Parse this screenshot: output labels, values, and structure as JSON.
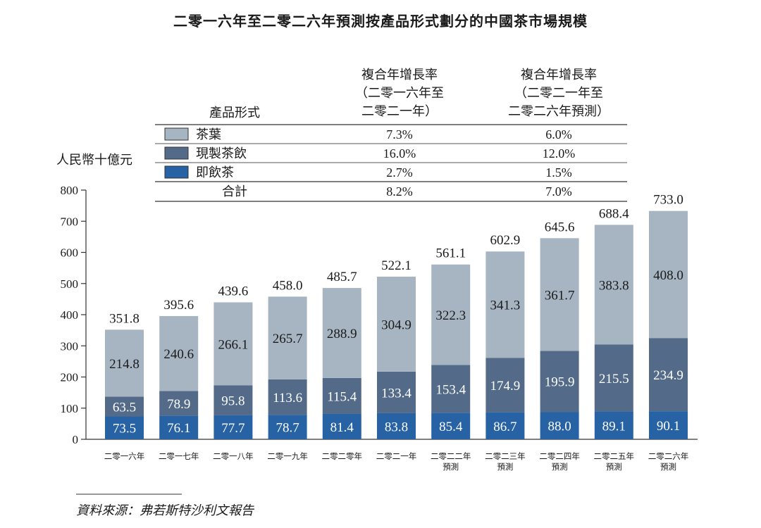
{
  "chart_data": {
    "type": "bar",
    "stacked": true,
    "title": "二零一六年至二零二六年預測按產品形式劃分的中國茶市場規模",
    "ylabel": "人民幣十億元",
    "ylim": [
      0,
      800
    ],
    "yticks": [
      0,
      100,
      200,
      300,
      400,
      500,
      600,
      700,
      800
    ],
    "grid": false,
    "categories": [
      [
        "二零一六年"
      ],
      [
        "二零一七年"
      ],
      [
        "二零一八年"
      ],
      [
        "二零一九年"
      ],
      [
        "二零二零年"
      ],
      [
        "二零二一年"
      ],
      [
        "二零二二年",
        "預測"
      ],
      [
        "二零二三年",
        "預測"
      ],
      [
        "二零二四年",
        "預測"
      ],
      [
        "二零二五年",
        "預測"
      ],
      [
        "二零二六年",
        "預測"
      ]
    ],
    "series": [
      {
        "name": "即飲茶",
        "color": "#2762a4",
        "values": [
          73.5,
          76.1,
          77.7,
          78.7,
          81.4,
          83.8,
          85.4,
          86.7,
          88.0,
          89.1,
          90.1
        ]
      },
      {
        "name": "現製茶飲",
        "color": "#536b88",
        "values": [
          63.5,
          78.9,
          95.8,
          113.6,
          115.4,
          133.4,
          153.4,
          174.9,
          195.9,
          215.5,
          234.9
        ]
      },
      {
        "name": "茶葉",
        "color": "#a7b5c3",
        "values": [
          214.8,
          240.6,
          266.1,
          265.7,
          288.9,
          304.9,
          322.3,
          341.3,
          361.7,
          383.8,
          408.0
        ]
      }
    ],
    "totals": [
      351.8,
      395.6,
      439.6,
      458.0,
      485.7,
      522.1,
      561.1,
      602.9,
      645.6,
      688.4,
      733.0
    ],
    "legend_table": {
      "header": [
        "產品形式",
        [
          "複合年增長率",
          "（二零一六年至",
          "二零二一年）"
        ],
        [
          "複合年增長率",
          "（二零二一年至",
          "二零二六年預測）"
        ]
      ],
      "rows": [
        {
          "label": "茶葉",
          "color": "#a7b5c3",
          "cagr1": "7.3%",
          "cagr2": "6.0%"
        },
        {
          "label": "現製茶飲",
          "color": "#536b88",
          "cagr1": "16.0%",
          "cagr2": "12.0%"
        },
        {
          "label": "即飲茶",
          "color": "#2762a4",
          "cagr1": "2.7%",
          "cagr2": "1.5%"
        },
        {
          "label": "合計",
          "cagr1": "8.2%",
          "cagr2": "7.0%"
        }
      ],
      "placement": "top"
    }
  },
  "source": "資料來源：弗若斯特沙利文報告"
}
